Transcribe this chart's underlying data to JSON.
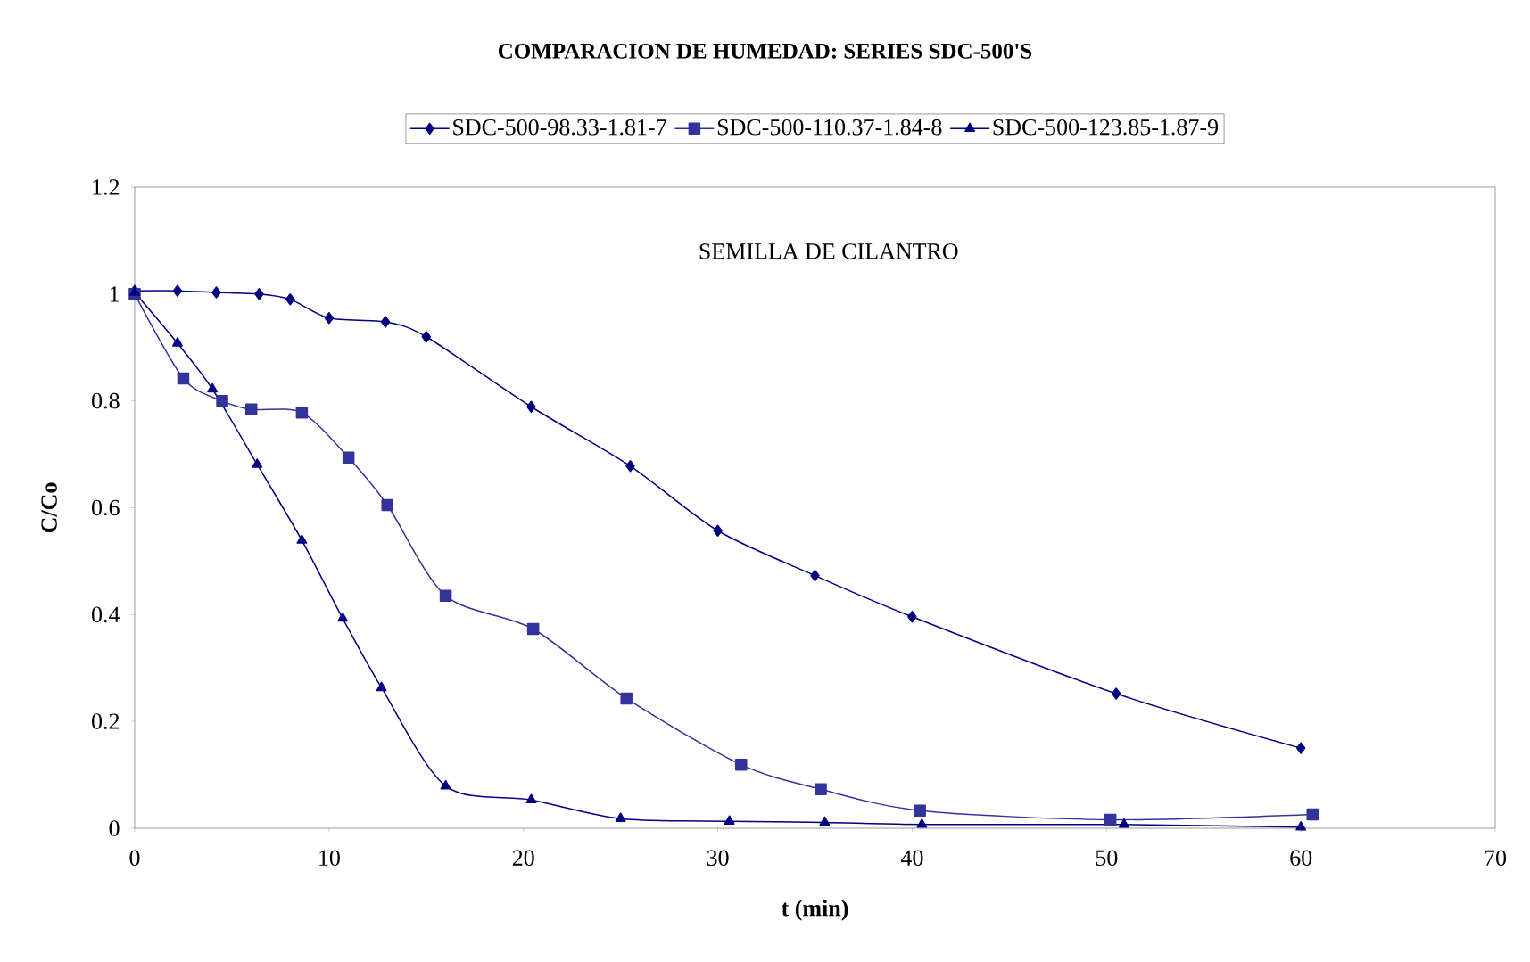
{
  "chart_data": {
    "type": "line",
    "title": "COMPARACION DE HUMEDAD: SERIES SDC-500'S",
    "xlabel": "t (min)",
    "ylabel": "C/Co",
    "annotations": [
      "SEMILLA DE CILANTRO"
    ],
    "xlim": [
      0,
      70
    ],
    "xticks": [
      0,
      10,
      20,
      30,
      40,
      50,
      60,
      70
    ],
    "ylim": [
      0,
      1.2
    ],
    "yticks": [
      0,
      0.2,
      0.4,
      0.6,
      0.8,
      1,
      1.2
    ],
    "grid": false,
    "legend": "top",
    "line_style": "solid",
    "series": [
      {
        "name": "SDC-500-98.33-1.81-7",
        "color": "#000080",
        "marker": "diamond",
        "x": [
          0,
          2.2,
          4.2,
          6.4,
          8.0,
          10.0,
          12.9,
          15.0,
          20.4,
          25.5,
          30.0,
          35.0,
          40.0,
          50.5,
          60.0
        ],
        "values": [
          1.006,
          1.006,
          1.003,
          1.0,
          0.99,
          0.955,
          0.948,
          0.92,
          0.789,
          0.678,
          0.557,
          0.473,
          0.396,
          0.252,
          0.15
        ]
      },
      {
        "name": "SDC-500-110.37-1.84-8",
        "color": "#333399",
        "marker": "square",
        "x": [
          0,
          2.5,
          4.5,
          6.0,
          8.6,
          11.0,
          13.0,
          16.0,
          20.5,
          25.3,
          31.2,
          35.3,
          40.4,
          50.2,
          60.6
        ],
        "values": [
          1.0,
          0.842,
          0.8,
          0.784,
          0.778,
          0.694,
          0.605,
          0.435,
          0.373,
          0.243,
          0.119,
          0.073,
          0.033,
          0.016,
          0.026
        ]
      },
      {
        "name": "SDC-500-123.85-1.87-9",
        "color": "#000080",
        "marker": "triangle",
        "x": [
          0,
          2.2,
          4.0,
          6.3,
          8.6,
          10.7,
          12.7,
          16.0,
          20.4,
          25.0,
          30.6,
          35.5,
          40.5,
          50.9,
          60.0
        ],
        "values": [
          1.003,
          0.908,
          0.822,
          0.681,
          0.539,
          0.393,
          0.263,
          0.079,
          0.053,
          0.018,
          0.013,
          0.011,
          0.007,
          0.007,
          0.002
        ]
      }
    ]
  }
}
